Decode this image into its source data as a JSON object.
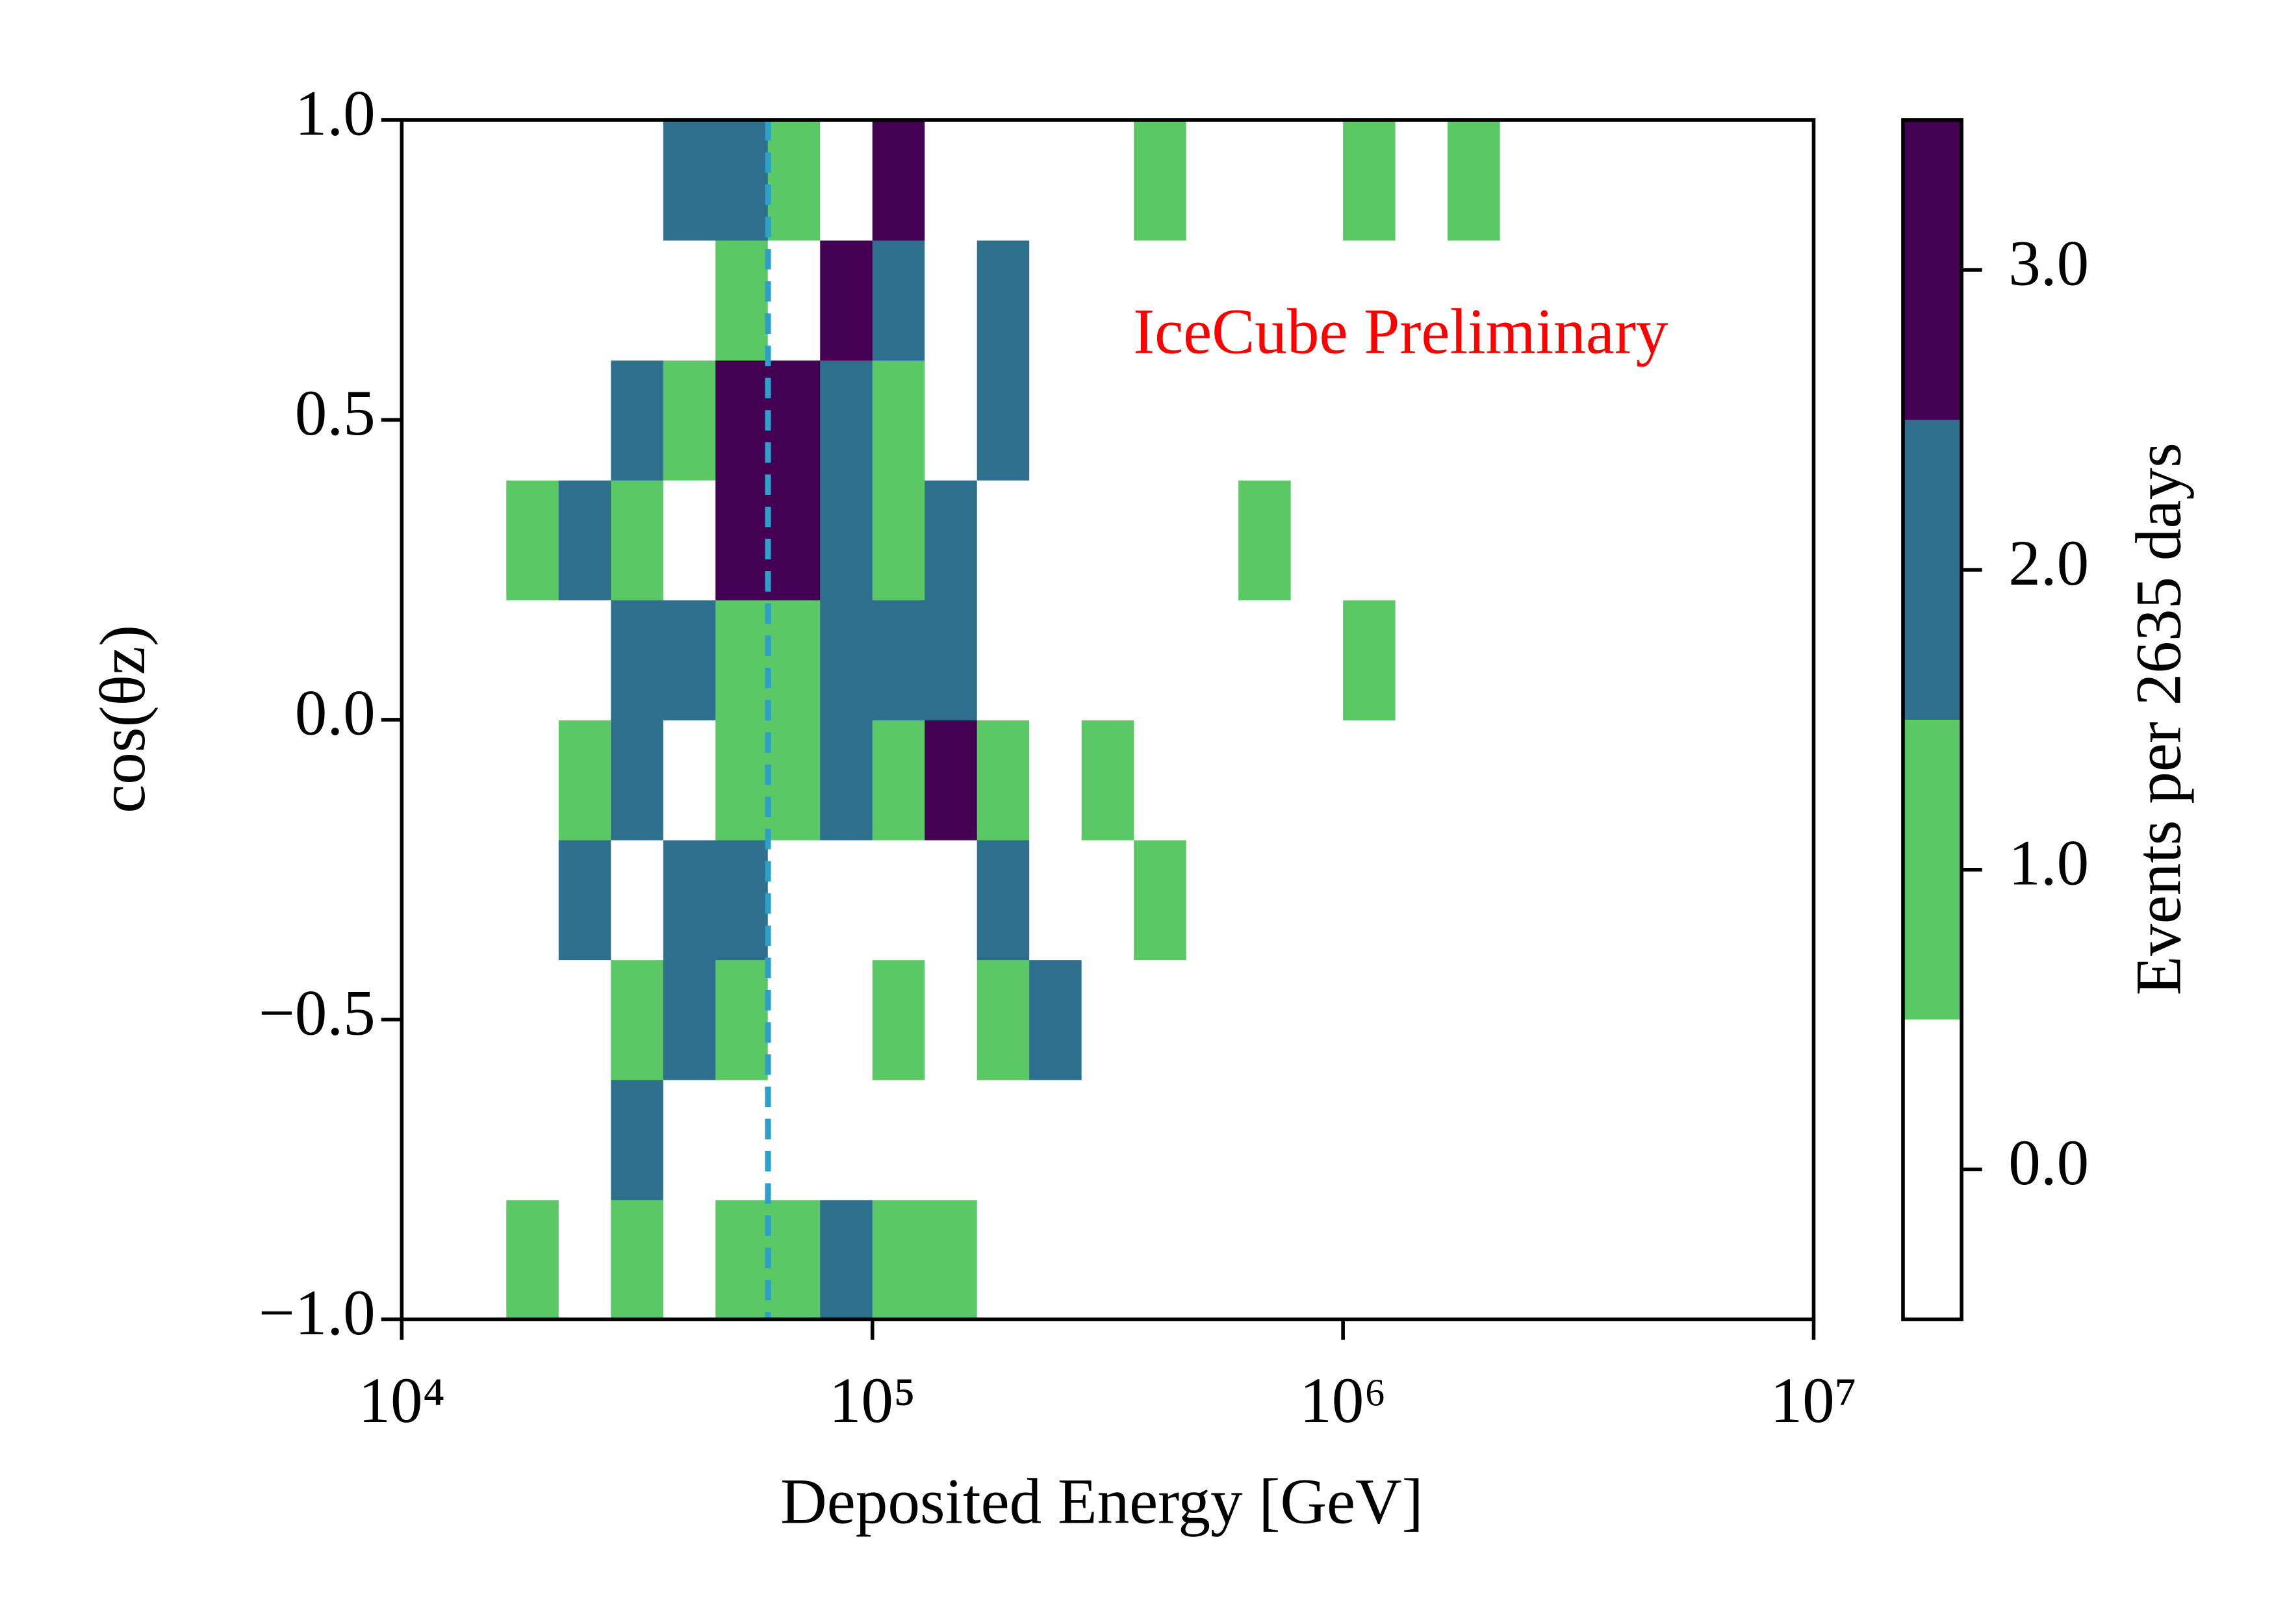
{
  "chart_data": {
    "type": "hist2d",
    "xlabel": "Deposited Energy [GeV]",
    "ylabel": "cos(θz)",
    "annotation": "IceCube Preliminary",
    "annotation_color": "#ff0000",
    "xscale": "log",
    "xlim": [
      10000,
      10000000
    ],
    "xticks": [
      {
        "value": 10000,
        "label": "10⁴"
      },
      {
        "value": 100000,
        "label": "10⁵"
      },
      {
        "value": 1000000,
        "label": "10⁶"
      },
      {
        "value": 10000000,
        "label": "10⁷"
      }
    ],
    "ylim": [
      -1,
      1
    ],
    "yticks": [
      {
        "value": -1,
        "label": "−1.0"
      },
      {
        "value": -0.5,
        "label": "−0.5"
      },
      {
        "value": 0,
        "label": "0.0"
      },
      {
        "value": 0.5,
        "label": "0.5"
      },
      {
        "value": 1,
        "label": "1.0"
      }
    ],
    "xbins": [
      10000,
      12915,
      16681,
      21544,
      27826,
      35938,
      46416,
      59948,
      77426,
      100000,
      129155,
      166810,
      215443,
      278256,
      359381,
      464159,
      599484,
      774264,
      1000000,
      1291550,
      1668101,
      2154435,
      2782559,
      3593814,
      4641589,
      5994843,
      7742637,
      10000000
    ],
    "ybins": [
      -1,
      -0.8,
      -0.6,
      -0.4,
      -0.2,
      0,
      0.2,
      0.4,
      0.6,
      0.8,
      1
    ],
    "counts": [
      [
        0,
        0,
        1,
        0,
        1,
        0,
        1,
        1,
        2,
        1,
        1,
        0,
        0,
        0,
        0,
        0,
        0,
        0,
        0,
        0,
        0,
        0,
        0,
        0,
        0,
        0,
        0
      ],
      [
        0,
        0,
        0,
        0,
        2,
        0,
        0,
        0,
        0,
        0,
        0,
        0,
        0,
        0,
        0,
        0,
        0,
        0,
        0,
        0,
        0,
        0,
        0,
        0,
        0,
        0,
        0
      ],
      [
        0,
        0,
        0,
        0,
        1,
        2,
        1,
        0,
        0,
        1,
        0,
        1,
        2,
        0,
        0,
        0,
        0,
        0,
        0,
        0,
        0,
        0,
        0,
        0,
        0,
        0,
        0
      ],
      [
        0,
        0,
        0,
        2,
        0,
        2,
        2,
        0,
        0,
        0,
        0,
        2,
        0,
        0,
        1,
        0,
        0,
        0,
        0,
        0,
        0,
        0,
        0,
        0,
        0,
        0,
        0
      ],
      [
        0,
        0,
        0,
        1,
        2,
        0,
        1,
        1,
        2,
        1,
        3,
        1,
        0,
        1,
        0,
        0,
        0,
        0,
        0,
        0,
        0,
        0,
        0,
        0,
        0,
        0,
        0
      ],
      [
        0,
        0,
        0,
        0,
        2,
        2,
        1,
        1,
        2,
        2,
        2,
        0,
        0,
        0,
        0,
        0,
        0,
        0,
        1,
        0,
        0,
        0,
        0,
        0,
        0,
        0,
        0
      ],
      [
        0,
        0,
        1,
        2,
        1,
        0,
        3,
        3,
        2,
        1,
        2,
        0,
        0,
        0,
        0,
        0,
        1,
        0,
        0,
        0,
        0,
        0,
        0,
        0,
        0,
        0,
        0
      ],
      [
        0,
        0,
        0,
        0,
        2,
        1,
        3,
        3,
        2,
        1,
        0,
        2,
        0,
        0,
        0,
        0,
        0,
        0,
        0,
        0,
        0,
        0,
        0,
        0,
        0,
        0,
        0
      ],
      [
        0,
        0,
        0,
        0,
        0,
        0,
        1,
        0,
        3,
        2,
        0,
        2,
        0,
        0,
        0,
        0,
        0,
        0,
        0,
        0,
        0,
        0,
        0,
        0,
        0,
        0,
        0
      ],
      [
        0,
        0,
        0,
        0,
        0,
        2,
        2,
        1,
        0,
        3,
        0,
        0,
        0,
        0,
        1,
        0,
        0,
        0,
        1,
        0,
        1,
        0,
        0,
        0,
        0,
        0,
        0
      ]
    ],
    "vline": 60000,
    "vline_color": "#2ca0c8",
    "colorbar": {
      "label": "Events per 2635 days",
      "boundaries": [
        -0.5,
        0.5,
        1.5,
        2.5,
        3.5
      ],
      "colors": [
        "#ffffff",
        "#5ac864",
        "#2e6f8e",
        "#440154"
      ],
      "lim": [
        -0.5,
        3.5
      ],
      "ticks": [
        {
          "value": 0,
          "label": "0.0"
        },
        {
          "value": 1,
          "label": "1.0"
        },
        {
          "value": 2,
          "label": "2.0"
        },
        {
          "value": 3,
          "label": "3.0"
        }
      ]
    }
  }
}
